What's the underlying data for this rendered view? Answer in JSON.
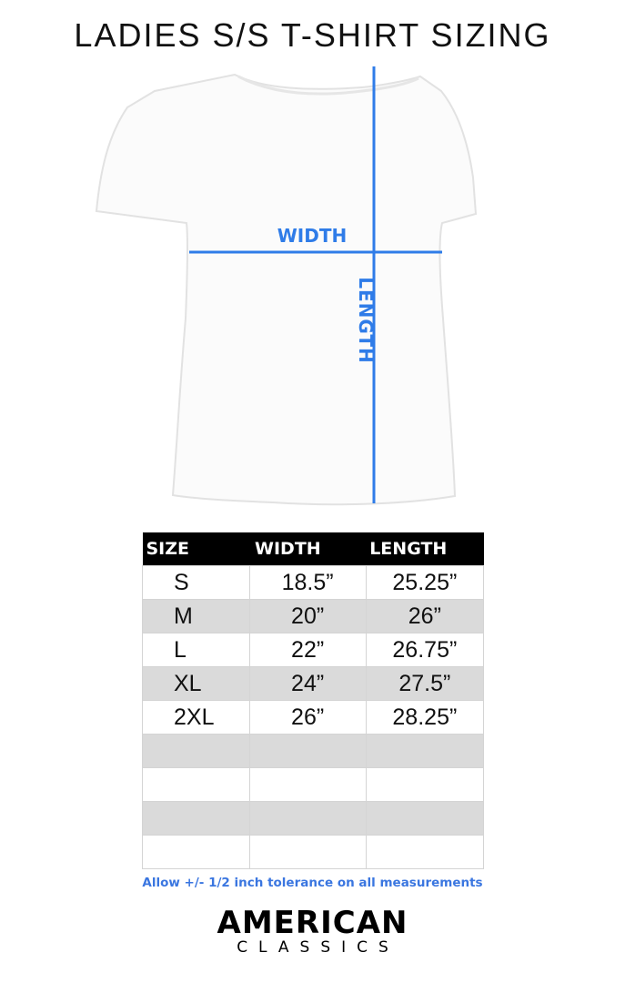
{
  "title": "LADIES S/S T-SHIRT SIZING",
  "diagram": {
    "width_label": "WIDTH",
    "length_label": "LENGTH",
    "line_color": "#2f7ce8"
  },
  "table": {
    "headers": [
      "SIZE",
      "WIDTH",
      "LENGTH"
    ],
    "rows": [
      [
        "S",
        "18.5”",
        "25.25”"
      ],
      [
        "M",
        "20”",
        "26”"
      ],
      [
        "L",
        "22”",
        "26.75”"
      ],
      [
        "XL",
        "24”",
        "27.5”"
      ],
      [
        "2XL",
        "26”",
        "28.25”"
      ],
      [
        "",
        "",
        ""
      ],
      [
        "",
        "",
        ""
      ],
      [
        "",
        "",
        ""
      ],
      [
        "",
        "",
        ""
      ]
    ]
  },
  "note": "Allow +/- 1/2 inch tolerance on all measurements",
  "logo": {
    "line1": "AMERICAN",
    "line2": "CLASSICS"
  }
}
